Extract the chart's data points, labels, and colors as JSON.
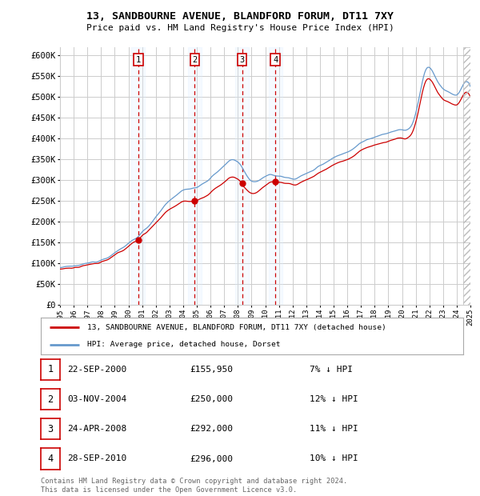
{
  "title": "13, SANDBOURNE AVENUE, BLANDFORD FORUM, DT11 7XY",
  "subtitle": "Price paid vs. HM Land Registry's House Price Index (HPI)",
  "ylim": [
    0,
    620000
  ],
  "yticks": [
    0,
    50000,
    100000,
    150000,
    200000,
    250000,
    300000,
    350000,
    400000,
    450000,
    500000,
    550000,
    600000
  ],
  "x_start_year": 1995,
  "x_end_year": 2025,
  "legend_line1": "13, SANDBOURNE AVENUE, BLANDFORD FORUM, DT11 7XY (detached house)",
  "legend_line2": "HPI: Average price, detached house, Dorset",
  "sales": [
    {
      "num": 1,
      "date": "22-SEP-2000",
      "price": 155950,
      "pct": "7% ↓ HPI",
      "year": 2000.72
    },
    {
      "num": 2,
      "date": "03-NOV-2004",
      "price": 250000,
      "pct": "12% ↓ HPI",
      "year": 2004.84
    },
    {
      "num": 3,
      "date": "24-APR-2008",
      "price": 292000,
      "pct": "11% ↓ HPI",
      "year": 2008.31
    },
    {
      "num": 4,
      "date": "28-SEP-2010",
      "price": 296000,
      "pct": "10% ↓ HPI",
      "year": 2010.74
    }
  ],
  "footer": "Contains HM Land Registry data © Crown copyright and database right 2024.\nThis data is licensed under the Open Government Licence v3.0.",
  "red_color": "#cc0000",
  "blue_color": "#6699cc",
  "shaded_color": "#ddeeff",
  "background_color": "#ffffff",
  "grid_color": "#cccccc"
}
